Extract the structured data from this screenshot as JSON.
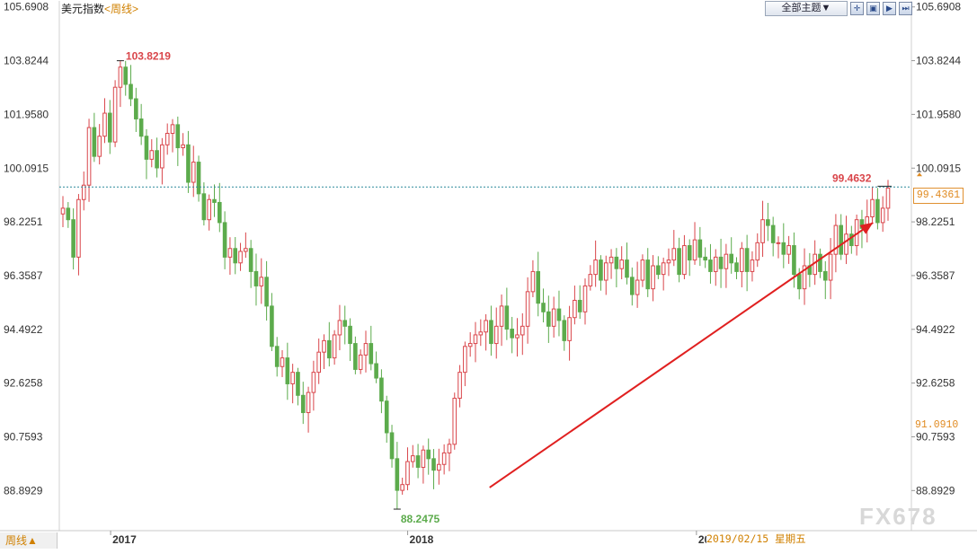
{
  "header": {
    "instrument": "美元指数",
    "timeframe": "<周线>"
  },
  "toolbar": {
    "theme_button": "全部主题▼",
    "icons": [
      "crosshair-icon",
      "zoom-out-icon",
      "play-icon",
      "step-forward-icon"
    ]
  },
  "footer": {
    "timeframe_label": "周线▲",
    "hover_date": "2019/02/15 星期五"
  },
  "watermark": "FX678",
  "price_tag": "99.4361",
  "current_level_label": "91.0910",
  "colors": {
    "up": "#d9454a",
    "down": "#5cab4c",
    "current_line": "#2b8a9a",
    "arrow": "#e02020",
    "accent": "#d08000"
  },
  "chart_data": {
    "type": "candlestick",
    "y_axis_ticks": [
      "105.6908",
      "103.8244",
      "101.9580",
      "100.0915",
      "98.2251",
      "96.3587",
      "94.4922",
      "92.6258",
      "90.7593",
      "88.8929"
    ],
    "ylim": [
      87.5,
      105.9
    ],
    "x_labels": [
      "2017",
      "2018",
      "2019"
    ],
    "annotations": {
      "high": "103.8219",
      "low": "88.2475",
      "last_high": "99.4632"
    },
    "current_price": 99.4361,
    "trend_arrow": {
      "from": [
        0.505,
        89.0
      ],
      "to": [
        0.955,
        98.2
      ]
    },
    "closes": [
      98.7,
      98.3,
      97.0,
      99.0,
      99.5,
      101.5,
      100.5,
      101.2,
      102.0,
      101.0,
      102.9,
      103.6,
      103.0,
      102.5,
      101.8,
      101.2,
      100.4,
      100.7,
      100.1,
      100.9,
      101.3,
      101.6,
      100.8,
      100.9,
      99.6,
      100.3,
      99.2,
      98.3,
      99.0,
      98.9,
      98.2,
      97.0,
      97.3,
      96.8,
      97.2,
      97.3,
      96.5,
      96.0,
      96.3,
      95.3,
      93.9,
      93.2,
      93.5,
      92.6,
      93.0,
      92.2,
      91.6,
      92.3,
      93.0,
      93.7,
      94.1,
      93.5,
      94.3,
      94.8,
      94.6,
      94.0,
      93.1,
      93.6,
      94.0,
      93.3,
      92.8,
      92.0,
      90.9,
      90.0,
      88.9,
      89.1,
      89.9,
      90.1,
      89.7,
      90.3,
      90.0,
      89.6,
      89.8,
      90.2,
      90.5,
      92.1,
      93.0,
      93.9,
      94.0,
      94.3,
      94.4,
      94.8,
      94.0,
      94.6,
      95.3,
      94.5,
      94.2,
      94.3,
      94.6,
      95.8,
      96.5,
      95.4,
      95.1,
      94.6,
      95.2,
      94.8,
      94.1,
      94.9,
      95.5,
      95.1,
      96.0,
      96.4,
      96.9,
      96.2,
      96.8,
      97.0,
      96.6,
      96.9,
      96.3,
      95.7,
      96.2,
      96.9,
      95.9,
      96.7,
      96.4,
      96.8,
      96.9,
      97.3,
      96.4,
      97.4,
      96.9,
      97.6,
      97.0,
      96.9,
      96.5,
      97.0,
      96.6,
      97.1,
      96.8,
      96.5,
      97.3,
      96.5,
      96.9,
      97.5,
      98.3,
      98.1,
      97.5,
      97.5,
      97.1,
      97.4,
      96.4,
      95.9,
      96.7,
      96.4,
      97.1,
      96.5,
      96.2,
      97.1,
      98.1,
      97.1,
      97.8,
      97.4,
      98.3,
      98.0,
      98.4,
      99.0,
      98.2,
      98.7,
      99.4
    ]
  }
}
